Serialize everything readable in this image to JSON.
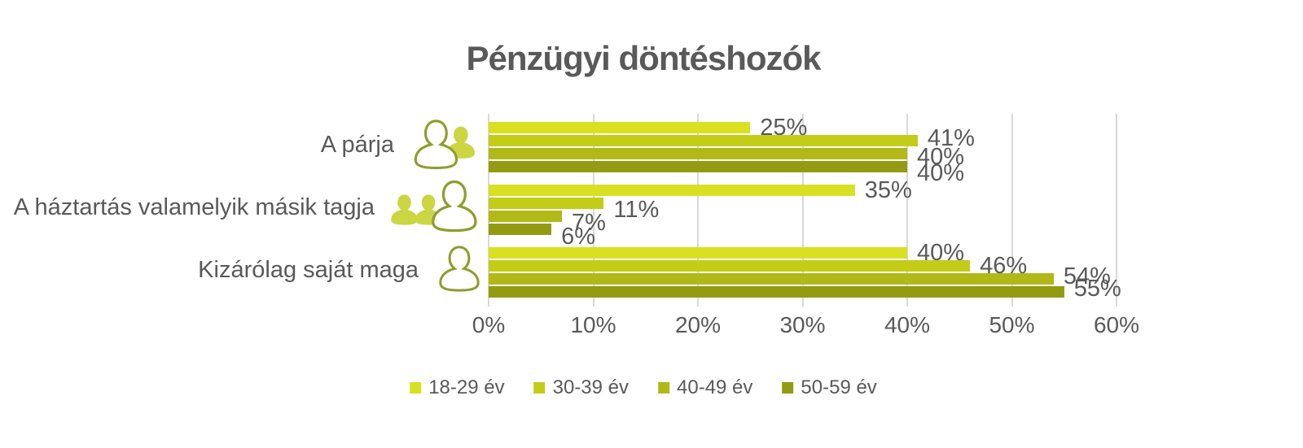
{
  "title": "Pénzügyi döntéshozók",
  "chart_data": {
    "type": "bar",
    "orientation": "horizontal",
    "title": "Pénzügyi döntéshozók",
    "categories": [
      "A párja",
      "A háztartás valamelyik másik tagja",
      "Kizárólag saját maga"
    ],
    "series": [
      {
        "name": "18-29 év",
        "color": "#d9e021",
        "values": [
          25,
          35,
          40
        ]
      },
      {
        "name": "30-39 év",
        "color": "#c3cd18",
        "values": [
          41,
          11,
          46
        ]
      },
      {
        "name": "40-49 év",
        "color": "#b0b917",
        "values": [
          40,
          7,
          54
        ]
      },
      {
        "name": "50-59 év",
        "color": "#939b12",
        "values": [
          40,
          6,
          55
        ]
      }
    ],
    "data_labels": [
      [
        "25%",
        "41%",
        "40%",
        "40%"
      ],
      [
        "35%",
        "11%",
        "7%",
        "6%"
      ],
      [
        "40%",
        "46%",
        "54%",
        "55%"
      ]
    ],
    "x_ticks": [
      "0%",
      "10%",
      "20%",
      "30%",
      "40%",
      "50%",
      "60%"
    ],
    "xlim": [
      0,
      60
    ],
    "grid": "vertical-only",
    "legend_position": "bottom-center",
    "label_dy": [
      [
        0,
        -3,
        4,
        8
      ],
      [
        0,
        8,
        8,
        9
      ],
      [
        0,
        0,
        -3,
        -4
      ]
    ]
  },
  "icons": {
    "partner": "two-people-icon",
    "household": "three-people-icon",
    "self": "single-person-icon"
  },
  "colors": {
    "text": "#595959",
    "grid": "#d9d9d9",
    "icon_outline": "#8f9d2e",
    "icon_fill": "#ccd542"
  }
}
